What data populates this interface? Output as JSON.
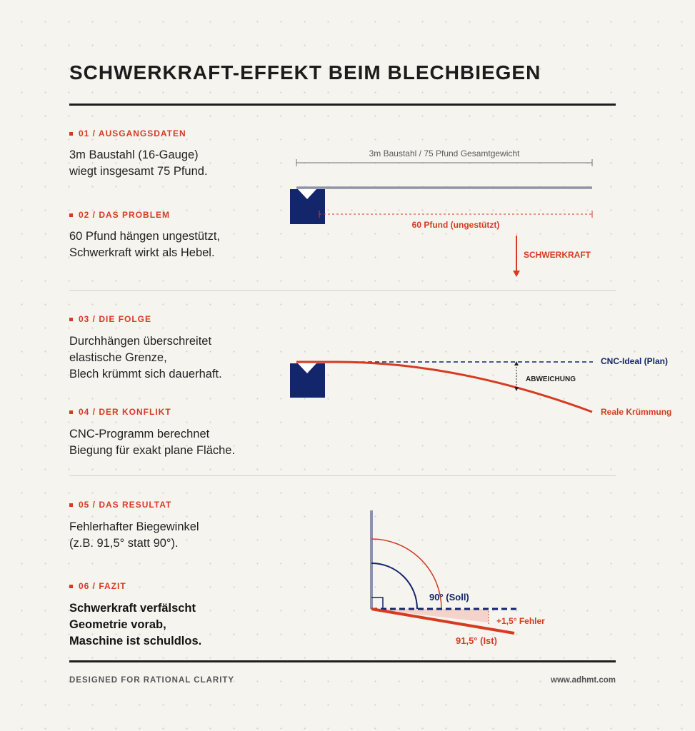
{
  "title": "SCHWERKRAFT-EFFEKT BEIM BLECHBIEGEN",
  "sections": [
    {
      "label": "01 / AUSGANGSDATEN",
      "text": "3m Baustahl (16-Gauge)\nwiegt insgesamt 75 Pfund."
    },
    {
      "label": "02 / DAS PROBLEM",
      "text": "60 Pfund hängen ungestützt,\nSchwerkraft wirkt als Hebel."
    },
    {
      "label": "03 / DIE FOLGE",
      "text": "Durchhängen überschreitet\nelastische Grenze,\nBlech krümmt sich dauerhaft."
    },
    {
      "label": "04 / DER KONFLIKT",
      "text": "CNC-Programm berechnet\nBiegung für exakt plane Fläche."
    },
    {
      "label": "05 / DAS RESULTAT",
      "text": "Fehlerhafter Biegewinkel\n(z.B. 91,5° statt 90°)."
    },
    {
      "label": "06 / FAZIT",
      "text": "Schwerkraft verfälscht\nGeometrie vorab,\nMaschine ist schuldlos."
    }
  ],
  "diagram1": {
    "dimension_label": "3m Baustahl / 75 Pfund Gesamtgewicht",
    "unsupported_label": "60 Pfund (ungestützt)",
    "force_label": "SCHWERKRAFT"
  },
  "diagram2": {
    "ideal_label": "CNC-Ideal (Plan)",
    "deviation_label": "ABWEICHUNG",
    "real_label": "Reale Krümmung"
  },
  "diagram3": {
    "target_label": "90° (Soll)",
    "error_label": "+1,5° Fehler",
    "actual_label": "91,5° (Ist)"
  },
  "footer": {
    "left": "DESIGNED FOR RATIONAL CLARITY",
    "right": "www.adhmt.com"
  },
  "colors": {
    "accent_red": "#d63b22",
    "navy": "#13256b",
    "steel": "#8d93a8",
    "ink": "#1c1c1c"
  }
}
